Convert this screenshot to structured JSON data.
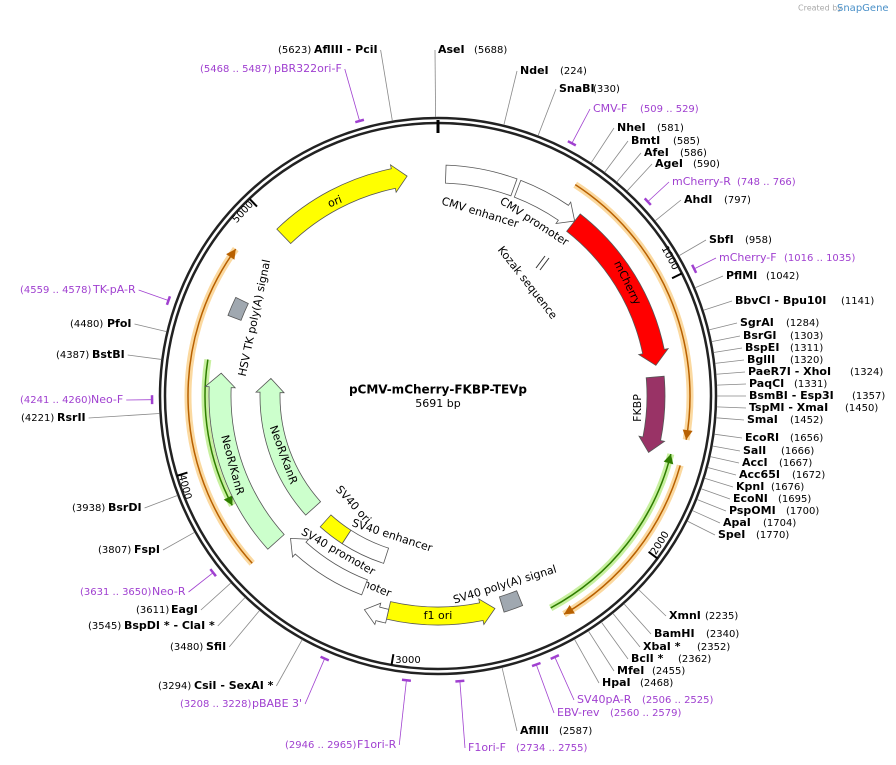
{
  "header": {
    "created_by": "Created by",
    "brand": "SnapGene"
  },
  "map": {
    "name": "pCMV-mCherry-FKBP-TEVp",
    "length": "5691 bp",
    "ticks": [
      1000,
      2000,
      3000,
      4000,
      5000
    ]
  },
  "enzymes": [
    {
      "name": "AflIII - PciI",
      "position": "(5623)"
    },
    {
      "name": "AseI",
      "position": "(5688)"
    },
    {
      "name": "NdeI",
      "position": "(224)"
    },
    {
      "name": "SnaBI",
      "position": "(330)"
    },
    {
      "name": "NheI",
      "position": "(581)"
    },
    {
      "name": "BmtI",
      "position": "(585)"
    },
    {
      "name": "AfeI",
      "position": "(586)"
    },
    {
      "name": "AgeI",
      "position": "(590)"
    },
    {
      "name": "AhdI",
      "position": "(797)"
    },
    {
      "name": "SbfI",
      "position": "(958)"
    },
    {
      "name": "PflMI",
      "position": "(1042)"
    },
    {
      "name": "BbvCI - Bpu10I",
      "position": "(1141)"
    },
    {
      "name": "SgrAI",
      "position": "(1284)"
    },
    {
      "name": "BsrGI",
      "position": "(1303)"
    },
    {
      "name": "BspEI",
      "position": "(1311)"
    },
    {
      "name": "BglII",
      "position": "(1320)"
    },
    {
      "name": "PaeR7I - XhoI",
      "position": "(1324)"
    },
    {
      "name": "PaqCI",
      "position": "(1331)"
    },
    {
      "name": "BsmBI - Esp3I",
      "position": "(1357)"
    },
    {
      "name": "TspMI - XmaI",
      "position": "(1450)"
    },
    {
      "name": "SmaI",
      "position": "(1452)"
    },
    {
      "name": "EcoRI",
      "position": "(1656)"
    },
    {
      "name": "SalI",
      "position": "(1666)"
    },
    {
      "name": "AccI",
      "position": "(1667)"
    },
    {
      "name": "Acc65I",
      "position": "(1672)"
    },
    {
      "name": "KpnI",
      "position": "(1676)"
    },
    {
      "name": "EcoNI",
      "position": "(1695)"
    },
    {
      "name": "PspOMI",
      "position": "(1700)"
    },
    {
      "name": "ApaI",
      "position": "(1704)"
    },
    {
      "name": "SpeI",
      "position": "(1770)"
    },
    {
      "name": "XmnI",
      "position": "(2235)"
    },
    {
      "name": "BamHI",
      "position": "(2340)"
    },
    {
      "name": "XbaI *",
      "position": "(2352)"
    },
    {
      "name": "BclI *",
      "position": "(2362)"
    },
    {
      "name": "MfeI",
      "position": "(2455)"
    },
    {
      "name": "HpaI",
      "position": "(2468)"
    },
    {
      "name": "AflIII",
      "position": "(2587)"
    },
    {
      "name": "CsiI - SexAI *",
      "position": "(3294)"
    },
    {
      "name": "SfiI",
      "position": "(3480)"
    },
    {
      "name": "BspDI * - ClaI *",
      "position": "(3545)"
    },
    {
      "name": "EagI",
      "position": "(3611)"
    },
    {
      "name": "FspI",
      "position": "(3807)"
    },
    {
      "name": "BsrDI",
      "position": "(3938)"
    },
    {
      "name": "RsrII",
      "position": "(4221)"
    },
    {
      "name": "BstBI",
      "position": "(4387)"
    },
    {
      "name": "PfoI",
      "position": "(4480)"
    }
  ],
  "primers": [
    {
      "name": "pBR322ori-F",
      "range": "(5468 .. 5487)"
    },
    {
      "name": "CMV-F",
      "range": "(509 .. 529)"
    },
    {
      "name": "mCherry-R",
      "range": "(748 .. 766)"
    },
    {
      "name": "mCherry-F",
      "range": "(1016 .. 1035)"
    },
    {
      "name": "SV40pA-R",
      "range": "(2506 .. 2525)"
    },
    {
      "name": "EBV-rev",
      "range": "(2560 .. 2579)"
    },
    {
      "name": "F1ori-F",
      "range": "(2734 .. 2755)"
    },
    {
      "name": "F1ori-R",
      "range": "(2946 .. 2965)"
    },
    {
      "name": "pBABE 3'",
      "range": "(3208 .. 3228)"
    },
    {
      "name": "Neo-R",
      "range": "(3631 .. 3650)"
    },
    {
      "name": "Neo-F",
      "range": "(4241 .. 4260)"
    },
    {
      "name": "TK-pA-R",
      "range": "(4559 .. 4578)"
    }
  ],
  "features": [
    {
      "name": "ori",
      "color": "#ffff00"
    },
    {
      "name": "CMV enhancer",
      "color": "#ffffff"
    },
    {
      "name": "CMV promoter",
      "color": "#ffffff"
    },
    {
      "name": "mCherry",
      "color": "#ff0000"
    },
    {
      "name": "FKBP",
      "color": "#993366"
    },
    {
      "name": "Kozak sequence",
      "color": "#ffffff"
    },
    {
      "name": "SV40 poly(A) signal",
      "color": "#a0a8b0"
    },
    {
      "name": "f1 ori",
      "color": "#ffff00"
    },
    {
      "name": "AmpR promoter",
      "color": "#ffffff"
    },
    {
      "name": "SV40 promoter",
      "color": "#ffffff"
    },
    {
      "name": "SV40 enhancer",
      "color": "#ffffff"
    },
    {
      "name": "SV40 ori",
      "color": "#ffff00"
    },
    {
      "name": "NeoR/KanR",
      "color": "#ccffcc"
    },
    {
      "name": "NeoR/KanR",
      "color": "#ccffcc"
    },
    {
      "name": "HSV TK poly(A) signal",
      "color": "#a0a8b0"
    }
  ]
}
